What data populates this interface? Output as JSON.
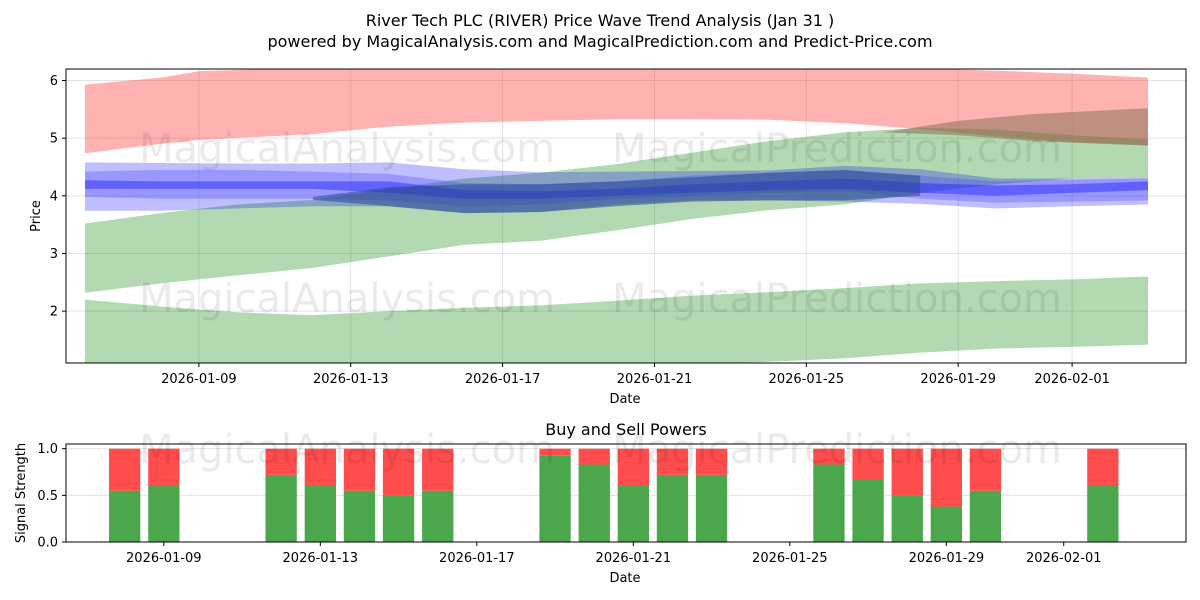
{
  "chart_data": [
    {
      "type": "area",
      "title": "River Tech PLC (RIVER) Price Wave Trend Analysis (Jan 31 )",
      "subtitle": "powered by MagicalAnalysis.com and MagicalPrediction.com and Predict-Price.com",
      "xlabel": "Date",
      "ylabel": "Price",
      "xlim": [
        "2026-01-05 12:00",
        "2026-02-04 00:00"
      ],
      "ylim": [
        1.1,
        6.2
      ],
      "x_ticks": [
        "2026-01-09",
        "2026-01-13",
        "2026-01-17",
        "2026-01-21",
        "2026-01-25",
        "2026-01-29",
        "2026-02-01"
      ],
      "y_ticks": [
        2,
        3,
        4,
        5,
        6
      ],
      "grid": true,
      "watermarks": [
        "MagicalAnalysis.com",
        "MagicalPrediction.com"
      ],
      "series": [
        {
          "name": "Upper band (red)",
          "color": "#ff0000",
          "opacity": 0.3,
          "x": [
            "2026-01-06",
            "2026-01-08",
            "2026-01-09",
            "2026-01-12",
            "2026-01-14",
            "2026-01-16",
            "2026-01-18",
            "2026-01-20",
            "2026-01-22",
            "2026-01-24",
            "2026-01-26",
            "2026-01-28",
            "2026-01-30",
            "2026-02-01",
            "2026-02-03"
          ],
          "upper": [
            5.93,
            6.05,
            6.16,
            6.23,
            6.24,
            6.24,
            6.23,
            6.24,
            6.24,
            6.25,
            6.24,
            6.21,
            6.17,
            6.12,
            6.05
          ],
          "lower": [
            4.74,
            4.9,
            4.97,
            5.07,
            5.2,
            5.27,
            5.3,
            5.33,
            5.33,
            5.32,
            5.26,
            5.16,
            5.03,
            4.93,
            4.88
          ]
        },
        {
          "name": "Upper trend (green)",
          "color": "#008000",
          "opacity": 0.3,
          "x": [
            "2026-01-06",
            "2026-01-08",
            "2026-01-10",
            "2026-01-12",
            "2026-01-14",
            "2026-01-16",
            "2026-01-18",
            "2026-01-20",
            "2026-01-22",
            "2026-01-24",
            "2026-01-26",
            "2026-01-28",
            "2026-01-30",
            "2026-02-01",
            "2026-02-03"
          ],
          "upper": [
            3.52,
            3.7,
            3.85,
            3.93,
            4.12,
            4.3,
            4.4,
            4.55,
            4.75,
            4.95,
            5.1,
            5.18,
            5.15,
            5.05,
            4.98
          ],
          "lower": [
            2.32,
            2.48,
            2.62,
            2.75,
            2.95,
            3.15,
            3.22,
            3.4,
            3.6,
            3.75,
            3.85,
            4.05,
            4.2,
            4.3,
            4.32
          ]
        },
        {
          "name": "Brown overlap band",
          "color": "#8b7355",
          "opacity": 0.55,
          "x": [
            "2026-01-27",
            "2026-01-29",
            "2026-01-31",
            "2026-02-03"
          ],
          "upper": [
            5.1,
            5.3,
            5.42,
            5.52
          ],
          "lower": [
            5.1,
            5.05,
            4.95,
            4.87
          ]
        },
        {
          "name": "Lower trend (green)",
          "color": "#008000",
          "opacity": 0.3,
          "x": [
            "2026-01-06",
            "2026-01-08",
            "2026-01-10",
            "2026-01-12",
            "2026-01-14",
            "2026-01-16",
            "2026-01-18",
            "2026-01-20",
            "2026-01-22",
            "2026-01-24",
            "2026-01-26",
            "2026-01-28",
            "2026-01-30",
            "2026-02-01",
            "2026-02-03"
          ],
          "upper": [
            2.2,
            2.08,
            1.98,
            1.93,
            2.0,
            2.06,
            2.1,
            2.18,
            2.27,
            2.33,
            2.4,
            2.48,
            2.52,
            2.55,
            2.6
          ],
          "lower": [
            1.05,
            1.02,
            0.98,
            0.98,
            1.0,
            1.02,
            1.04,
            1.06,
            1.08,
            1.12,
            1.18,
            1.28,
            1.35,
            1.38,
            1.42
          ]
        },
        {
          "name": "Blue wave band 1",
          "color": "#0000ff",
          "opacity": 0.25,
          "x": [
            "2026-01-06",
            "2026-01-08",
            "2026-01-10",
            "2026-01-12",
            "2026-01-14",
            "2026-01-16",
            "2026-01-18",
            "2026-01-20",
            "2026-01-22",
            "2026-01-24",
            "2026-01-26",
            "2026-01-28",
            "2026-01-30",
            "2026-02-01",
            "2026-02-03"
          ],
          "upper": [
            4.58,
            4.57,
            4.56,
            4.56,
            4.58,
            4.46,
            4.41,
            4.42,
            4.43,
            4.44,
            4.52,
            4.46,
            4.3,
            4.3,
            4.32
          ],
          "lower": [
            3.74,
            3.74,
            3.78,
            3.82,
            3.82,
            3.7,
            3.72,
            3.85,
            3.92,
            3.92,
            3.9,
            3.86,
            3.78,
            3.82,
            3.85
          ]
        },
        {
          "name": "Blue wave band 2",
          "color": "#4040ff",
          "opacity": 0.3,
          "x": [
            "2026-01-06",
            "2026-01-08",
            "2026-01-10",
            "2026-01-12",
            "2026-01-14",
            "2026-01-16",
            "2026-01-18",
            "2026-01-20",
            "2026-01-22",
            "2026-01-24",
            "2026-01-26",
            "2026-01-28",
            "2026-01-30",
            "2026-02-01",
            "2026-02-03"
          ],
          "upper": [
            4.42,
            4.45,
            4.45,
            4.42,
            4.38,
            4.22,
            4.2,
            4.25,
            4.35,
            4.4,
            4.44,
            4.35,
            4.25,
            4.28,
            4.3
          ],
          "lower": [
            3.98,
            3.95,
            3.95,
            3.95,
            3.92,
            3.82,
            3.85,
            3.95,
            4.0,
            4.05,
            4.08,
            3.95,
            3.88,
            3.9,
            3.92
          ]
        },
        {
          "name": "Blue trend line",
          "color": "#2020ff",
          "opacity": 0.45,
          "x": [
            "2026-01-06",
            "2026-01-08",
            "2026-01-10",
            "2026-01-12",
            "2026-01-14",
            "2026-01-16",
            "2026-01-18",
            "2026-01-20",
            "2026-01-22",
            "2026-01-24",
            "2026-01-26",
            "2026-01-28",
            "2026-01-30",
            "2026-02-01",
            "2026-02-03"
          ],
          "upper": [
            4.27,
            4.25,
            4.25,
            4.25,
            4.25,
            4.1,
            4.08,
            4.12,
            4.2,
            4.25,
            4.3,
            4.22,
            4.18,
            4.2,
            4.25
          ],
          "lower": [
            4.12,
            4.12,
            4.12,
            4.12,
            4.05,
            3.95,
            3.95,
            4.0,
            4.05,
            4.1,
            4.12,
            4.05,
            4.0,
            4.05,
            4.1
          ]
        },
        {
          "name": "Dark blue-green overlap",
          "color": "#2a4c8c",
          "opacity": 0.55,
          "x": [
            "2026-01-12",
            "2026-01-14",
            "2026-01-16",
            "2026-01-18",
            "2026-01-20",
            "2026-01-22",
            "2026-01-24",
            "2026-01-26",
            "2026-01-28"
          ],
          "upper": [
            3.98,
            4.15,
            4.2,
            4.2,
            4.25,
            4.32,
            4.4,
            4.45,
            4.35
          ],
          "lower": [
            3.93,
            3.82,
            3.7,
            3.72,
            3.82,
            3.9,
            3.92,
            3.92,
            4.0
          ]
        }
      ]
    },
    {
      "type": "bar",
      "title": "Buy and Sell Powers",
      "xlabel": "Date",
      "ylabel": "Signal Strength",
      "ylim": [
        0,
        1.05
      ],
      "y_ticks": [
        "0.0",
        "0.5",
        "1.0"
      ],
      "x_ticks": [
        "2026-01-09",
        "2026-01-13",
        "2026-01-17",
        "2026-01-21",
        "2026-01-25",
        "2026-01-29",
        "2026-02-01"
      ],
      "colors": {
        "buy": "#4ca64c",
        "sell": "#ff4d4d"
      },
      "categories": [
        "2026-01-08",
        "2026-01-09",
        "2026-01-12",
        "2026-01-13",
        "2026-01-14",
        "2026-01-15",
        "2026-01-16",
        "2026-01-19",
        "2026-01-20",
        "2026-01-21",
        "2026-01-22",
        "2026-01-23",
        "2026-01-26",
        "2026-01-27",
        "2026-01-28",
        "2026-01-29",
        "2026-01-30",
        "2026-02-02"
      ],
      "series": [
        {
          "name": "Buy",
          "values": [
            0.55,
            0.6,
            0.72,
            0.6,
            0.55,
            0.5,
            0.55,
            0.93,
            0.83,
            0.6,
            0.72,
            0.72,
            0.83,
            0.67,
            0.5,
            0.38,
            0.55,
            0.6
          ]
        },
        {
          "name": "Sell",
          "values": [
            0.45,
            0.4,
            0.28,
            0.4,
            0.45,
            0.5,
            0.45,
            0.07,
            0.17,
            0.4,
            0.28,
            0.28,
            0.17,
            0.33,
            0.5,
            0.62,
            0.45,
            0.4
          ]
        }
      ]
    }
  ]
}
